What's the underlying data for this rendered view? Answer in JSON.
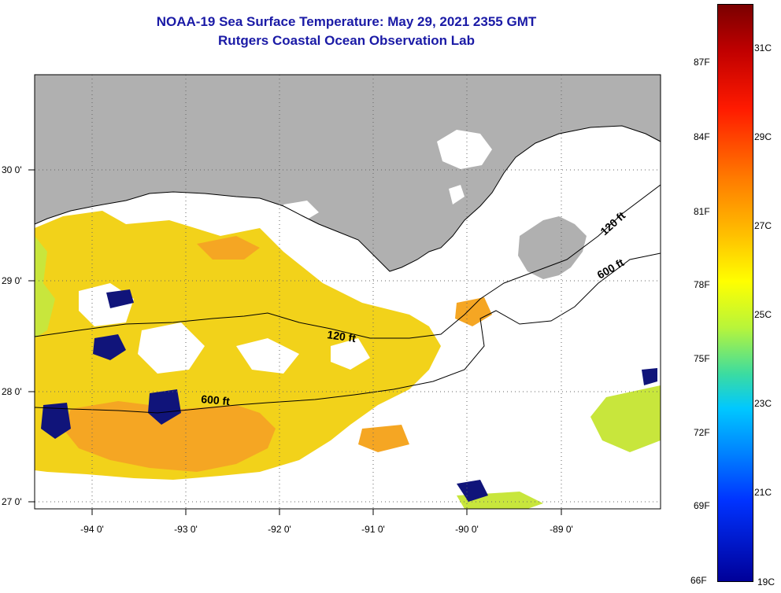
{
  "title": {
    "line1": "NOAA-19 Sea Surface Temperature:  May 29, 2021 2355 GMT",
    "line2": "Rutgers Coastal Ocean Observation Lab"
  },
  "map": {
    "lon_labels": [
      "-94 0'",
      "-93 0'",
      "-92 0'",
      "-91 0'",
      "-90 0'",
      "-89 0'"
    ],
    "lat_labels": [
      "30 0'",
      "29 0'",
      "28 0'",
      "27 0'"
    ],
    "contour_labels": [
      "120 ft",
      "600 ft",
      "120 ft",
      "600 ft"
    ],
    "colors": {
      "land": "#b0b0b0",
      "cloud": "#ffffff",
      "warm_water": "#f5a623",
      "mid_water": "#f2d21a",
      "cool_water": "#c8e63c",
      "cold_patch": "#10147a"
    }
  },
  "colorbar": {
    "fahrenheit_labels": [
      "87F",
      "84F",
      "81F",
      "78F",
      "75F",
      "72F",
      "69F",
      "66F"
    ],
    "celsius_labels": [
      "31C",
      "29C",
      "27C",
      "25C",
      "23C",
      "21C",
      "19C"
    ]
  }
}
